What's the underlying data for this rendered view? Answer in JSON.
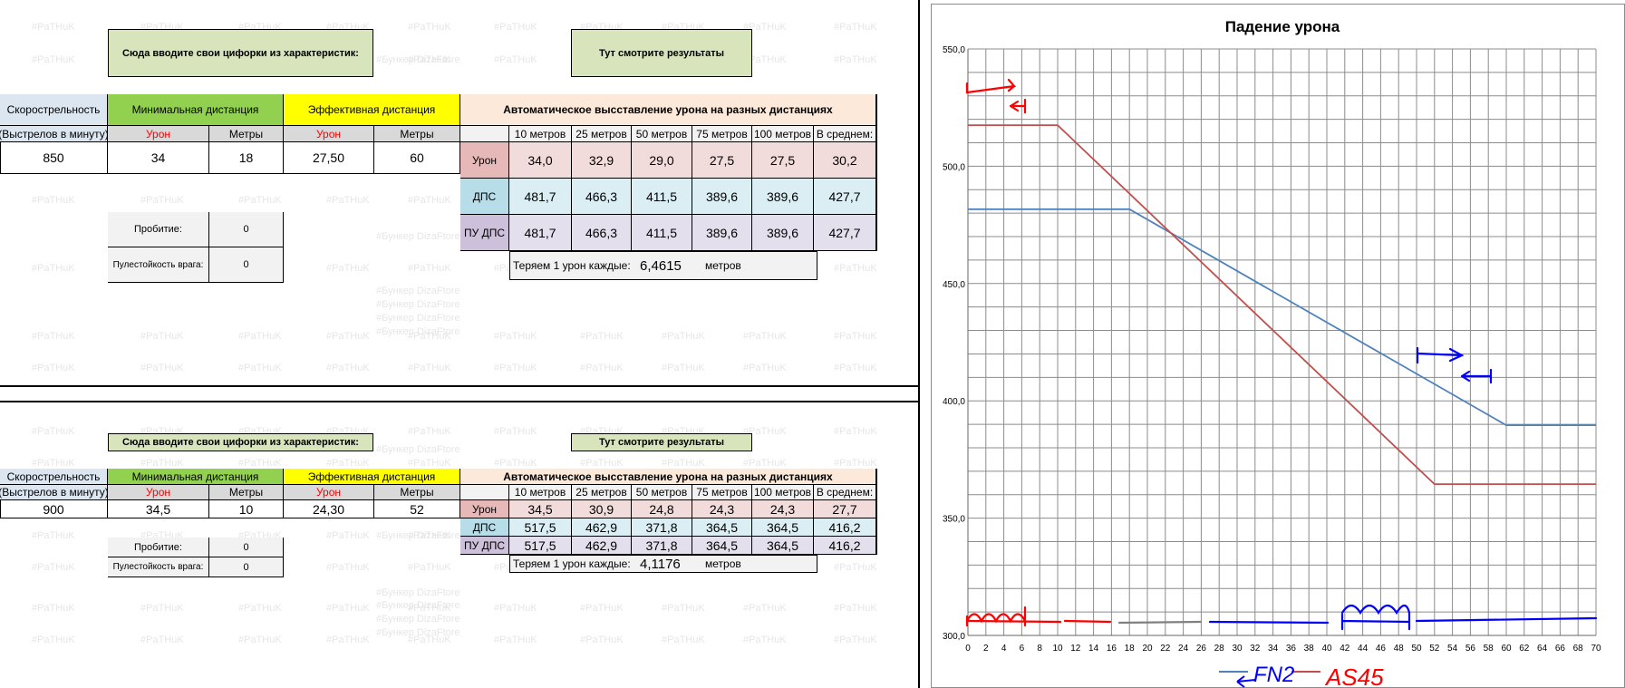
{
  "watermark_tag": "#PaTHuK",
  "watermark_bunker": "#Бункер DizaFtore",
  "block1": {
    "input_hint": "Сюда вводите свои цифорки из характеристик:",
    "results_hint": "Тут смотрите результаты",
    "headers": {
      "rate": "Скорострельность",
      "rate_sub": "(Выстрелов в минуту)",
      "min_dist": "Минимальная дистанция",
      "eff_dist": "Эффективная дистанция",
      "auto": "Автоматическое высставление урона на разных дистанциях",
      "damage": "Урон",
      "meters": "Метры",
      "dist_cols": [
        "10 метров",
        "25 метров",
        "50 метров",
        "75 метров",
        "100 метров",
        "В среднем:"
      ]
    },
    "inputs": {
      "rate": "850",
      "min_damage": "34",
      "min_meters": "18",
      "eff_damage": "27,50",
      "eff_meters": "60"
    },
    "rows": [
      {
        "label": "Урон",
        "values": [
          "34,0",
          "32,9",
          "29,0",
          "27,5",
          "27,5",
          "30,2"
        ]
      },
      {
        "label": "ДПС",
        "values": [
          "481,7",
          "466,3",
          "411,5",
          "389,6",
          "389,6",
          "427,7"
        ]
      },
      {
        "label": "ПУ ДПС",
        "values": [
          "481,7",
          "466,3",
          "411,5",
          "389,6",
          "389,6",
          "427,7"
        ]
      }
    ],
    "penetration_label": "Пробитие:",
    "penetration_value": "0",
    "resist_label": "Пулестойкость врага:",
    "resist_value": "0",
    "loss_label": "Теряем 1 урон каждые:",
    "loss_value": "6,4615",
    "loss_unit": "метров"
  },
  "block2": {
    "input_hint": "Сюда вводите свои цифорки из характеристик:",
    "results_hint": "Тут смотрите результаты",
    "headers": {
      "rate": "Скорострельность",
      "rate_sub": "(Выстрелов в минуту)",
      "min_dist": "Минимальная дистанция",
      "eff_dist": "Эффективная дистанция",
      "auto": "Автоматическое высставление урона на разных дистанциях",
      "damage": "Урон",
      "meters": "Метры",
      "dist_cols": [
        "10 метров",
        "25 метров",
        "50 метров",
        "75 метров",
        "100 метров",
        "В среднем:"
      ]
    },
    "inputs": {
      "rate": "900",
      "min_damage": "34,5",
      "min_meters": "10",
      "eff_damage": "24,30",
      "eff_meters": "52"
    },
    "rows": [
      {
        "label": "Урон",
        "values": [
          "34,5",
          "30,9",
          "24,8",
          "24,3",
          "24,3",
          "27,7"
        ]
      },
      {
        "label": "ДПС",
        "values": [
          "517,5",
          "462,9",
          "371,8",
          "364,5",
          "364,5",
          "416,2"
        ]
      },
      {
        "label": "ПУ ДПС",
        "values": [
          "517,5",
          "462,9",
          "371,8",
          "364,5",
          "364,5",
          "416,2"
        ]
      }
    ],
    "penetration_label": "Пробитие:",
    "penetration_value": "0",
    "resist_label": "Пулестойкость врага:",
    "resist_value": "0",
    "loss_label": "Теряем 1 урон каждые:",
    "loss_value": "4,1176",
    "loss_unit": "метров"
  },
  "chart_data": {
    "type": "line",
    "title": "Падение урона",
    "xlabel": "",
    "ylabel": "",
    "xlim": [
      0,
      70
    ],
    "ylim": [
      300,
      550
    ],
    "x_ticks": [
      0,
      2,
      4,
      6,
      8,
      10,
      12,
      14,
      16,
      18,
      20,
      22,
      24,
      26,
      28,
      30,
      32,
      34,
      36,
      38,
      40,
      42,
      44,
      46,
      48,
      50,
      52,
      54,
      56,
      58,
      60,
      62,
      64,
      66,
      68,
      70
    ],
    "y_ticks": [
      "300,0",
      "350,0",
      "400,0",
      "450,0",
      "500,0",
      "550,0"
    ],
    "y_tick_values": [
      300,
      350,
      400,
      450,
      500,
      550
    ],
    "grid": true,
    "legend_position": "bottom",
    "series": [
      {
        "name": "",
        "color": "#4f81bd",
        "points": [
          [
            0,
            481.7
          ],
          [
            18,
            481.7
          ],
          [
            60,
            389.6
          ],
          [
            70,
            389.6
          ]
        ]
      },
      {
        "name": "",
        "color": "#c0504d",
        "points": [
          [
            0,
            517.5
          ],
          [
            10,
            517.5
          ],
          [
            52,
            364.5
          ],
          [
            70,
            364.5
          ]
        ]
      }
    ],
    "annotations": [
      {
        "text": "FN2",
        "color": "#0000ff"
      },
      {
        "text": "AS45",
        "color": "#ff0000"
      }
    ]
  }
}
